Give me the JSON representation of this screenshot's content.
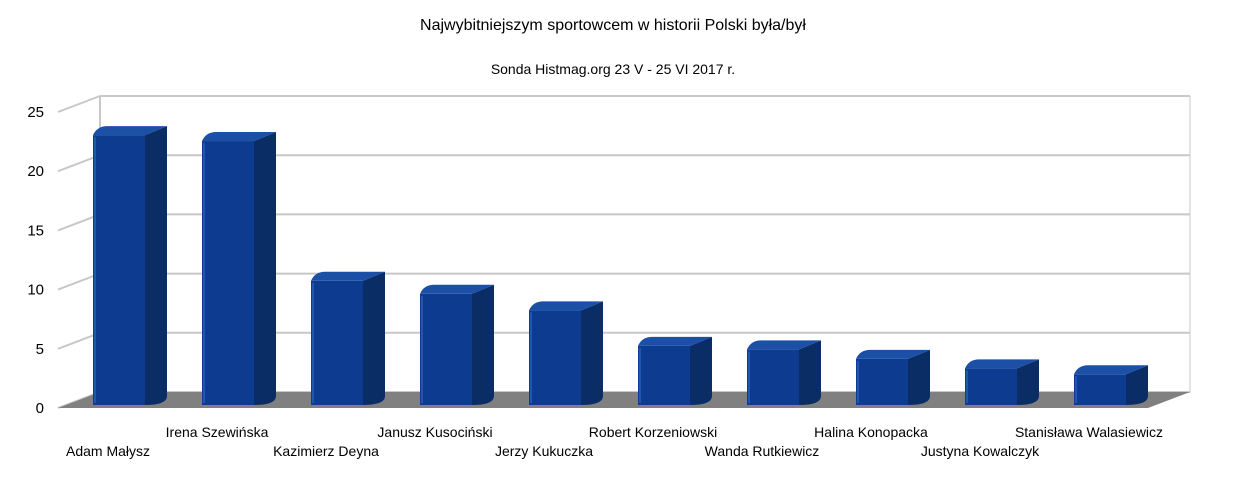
{
  "chart_data": {
    "type": "bar",
    "title": "Najwybitniejszym sportowcem w historii Polski była/był",
    "subtitle": "Sonda Histmag.org 23 V - 25 VI 2017 r.",
    "categories": [
      "Adam Małysz",
      "Irena Szewińska",
      "Kazimierz Deyna",
      "Janusz Kusociński",
      "Jerzy Kukuczka",
      "Robert Korzeniowski",
      "Wanda Rutkiewicz",
      "Halina Konopacka",
      "Justyna Kowalczyk",
      "Stanisława Walasiewicz"
    ],
    "values": [
      23.3,
      22.8,
      11.0,
      9.9,
      8.5,
      5.5,
      5.2,
      4.4,
      3.6,
      3.1
    ],
    "yticks": [
      "0",
      "5",
      "10",
      "15",
      "20",
      "25"
    ],
    "ylim": [
      0,
      25
    ],
    "grid": true,
    "legend": "none",
    "bar_color": "#0d3b8f",
    "bar_side_color": "#0a2d66",
    "bar_top_color": "#1c4fa6",
    "floor_color": "#808080",
    "grid_color": "#c8c8c8"
  }
}
